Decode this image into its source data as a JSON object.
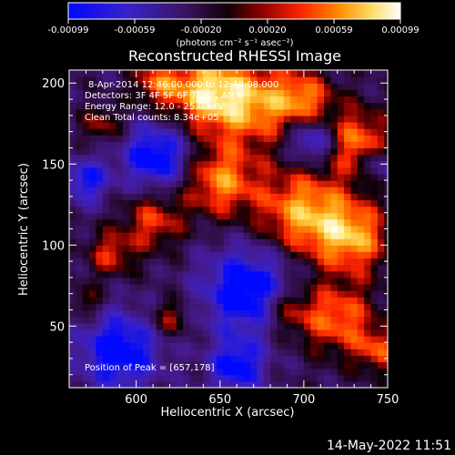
{
  "colorbar": {
    "ticks": [
      "-0.00099",
      "-0.00059",
      "-0.00020",
      "0.00020",
      "0.00059",
      "0.00099"
    ],
    "units": "(photons cm⁻² s⁻¹ asec⁻²)"
  },
  "chart_data": {
    "type": "heatmap",
    "title": "Reconstructed RHESSI Image",
    "xlabel": "Heliocentric X (arcsec)",
    "ylabel": "Heliocentric Y (arcsec)",
    "xlim": [
      560,
      750
    ],
    "ylim": [
      12,
      208
    ],
    "xticks": [
      600,
      650,
      700,
      750
    ],
    "yticks": [
      50,
      100,
      150,
      200
    ],
    "value_range": [
      -0.00099,
      0.00099
    ],
    "colorscale": [
      "#0000ff",
      "#4b2aa8",
      "#000000",
      "#8a0000",
      "#ff2a00",
      "#ff9a00",
      "#ffffd8"
    ],
    "peak_position": [
      657,
      178
    ],
    "grid_resolution_arcsec": 4,
    "hot_regions": [
      {
        "x": 640,
        "y": 195,
        "r": 22,
        "v": 0.00088
      },
      {
        "x": 668,
        "y": 188,
        "r": 26,
        "v": 0.00085
      },
      {
        "x": 700,
        "y": 190,
        "r": 18,
        "v": 0.0007
      },
      {
        "x": 732,
        "y": 165,
        "r": 20,
        "v": 0.00075
      },
      {
        "x": 650,
        "y": 140,
        "r": 22,
        "v": 0.0008
      },
      {
        "x": 700,
        "y": 120,
        "r": 28,
        "v": 0.0009
      },
      {
        "x": 730,
        "y": 105,
        "r": 22,
        "v": 0.0008
      },
      {
        "x": 610,
        "y": 115,
        "r": 18,
        "v": 0.0006
      },
      {
        "x": 585,
        "y": 95,
        "r": 14,
        "v": 0.00055
      },
      {
        "x": 612,
        "y": 200,
        "r": 14,
        "v": 0.0006
      },
      {
        "x": 580,
        "y": 175,
        "r": 12,
        "v": 0.00045
      },
      {
        "x": 720,
        "y": 55,
        "r": 22,
        "v": 0.00075
      },
      {
        "x": 690,
        "y": 60,
        "r": 16,
        "v": 0.0006
      },
      {
        "x": 745,
        "y": 35,
        "r": 14,
        "v": 0.0006
      },
      {
        "x": 620,
        "y": 55,
        "r": 12,
        "v": 0.0005
      },
      {
        "x": 570,
        "y": 65,
        "r": 10,
        "v": 0.0004
      }
    ],
    "cold_regions": [
      {
        "x": 668,
        "y": 72,
        "r": 28,
        "v": -0.00095
      },
      {
        "x": 612,
        "y": 155,
        "r": 20,
        "v": -0.0009
      },
      {
        "x": 590,
        "y": 35,
        "r": 24,
        "v": -0.0009
      },
      {
        "x": 705,
        "y": 165,
        "r": 14,
        "v": -0.0008
      },
      {
        "x": 570,
        "y": 140,
        "r": 14,
        "v": -0.0007
      },
      {
        "x": 660,
        "y": 25,
        "r": 16,
        "v": -0.0008
      },
      {
        "x": 745,
        "y": 150,
        "r": 10,
        "v": -0.0005
      }
    ]
  },
  "info": {
    "time": "8-Apr-2014 12:46:00.000 to 12:48:08.000",
    "detectors": "Detectors: 3F 4F 5F 6F 7F 8F, Att 0",
    "energy": "Energy Range: 12.0 - 25.0 keV",
    "clean": "Clean     Total counts: 8.34e+05",
    "peak": "Position of Peak = [657,178]"
  },
  "timestamp": "14-May-2022 11:51"
}
